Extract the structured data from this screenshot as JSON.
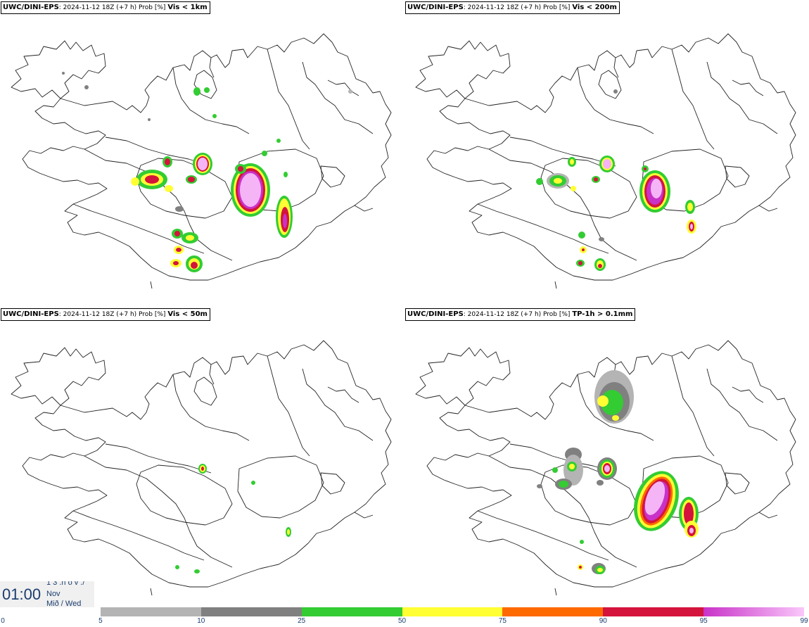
{
  "panels": [
    {
      "source": "UWC/DINI-EPS",
      "info": ": 2024-11-12 18Z (+7 h) Prob [%]",
      "variable": "Vis < 1km"
    },
    {
      "source": "UWC/DINI-EPS",
      "info": ": 2024-11-12 18Z (+7 h) Prob [%]",
      "variable": "Vis < 200m"
    },
    {
      "source": "UWC/DINI-EPS",
      "info": ": 2024-11-12 18Z (+7 h) Prob [%]",
      "variable": "Vis < 50m"
    },
    {
      "source": "UWC/DINI-EPS",
      "info": ": 2024-11-12 18Z (+7 h) Prob [%]",
      "variable": "TP-1h > 0.1mm"
    }
  ],
  "timestamp": {
    "time": "01:00",
    "line1": "1 3 .n ó v ./",
    "line2": "Nov",
    "line3": "Mið / Wed"
  },
  "colorbar": {
    "segments": [
      {
        "from": 0,
        "to": 5,
        "color": "#ffffff"
      },
      {
        "from": 5,
        "to": 10,
        "color": "#b4b4b4"
      },
      {
        "from": 10,
        "to": 25,
        "color": "#808080"
      },
      {
        "from": 25,
        "to": 50,
        "color": "#33cc33"
      },
      {
        "from": 50,
        "to": 75,
        "color": "#ffff33"
      },
      {
        "from": 75,
        "to": 90,
        "color": "#ff6a00"
      },
      {
        "from": 90,
        "to": 95,
        "color": "#d4143c"
      },
      {
        "from": 95,
        "to": 99,
        "color": "#c832c8"
      }
    ],
    "end_color": "#fac8fa",
    "ticks": [
      "0",
      "5",
      "10",
      "25",
      "50",
      "75",
      "90",
      "95",
      "99"
    ]
  },
  "colors": {
    "gray_light": "#b4b4b4",
    "gray": "#808080",
    "green": "#33cc33",
    "yellow": "#ffff33",
    "orange": "#ff6a00",
    "red": "#d4143c",
    "magenta": "#c832c8",
    "pink": "#f5b4f5"
  }
}
